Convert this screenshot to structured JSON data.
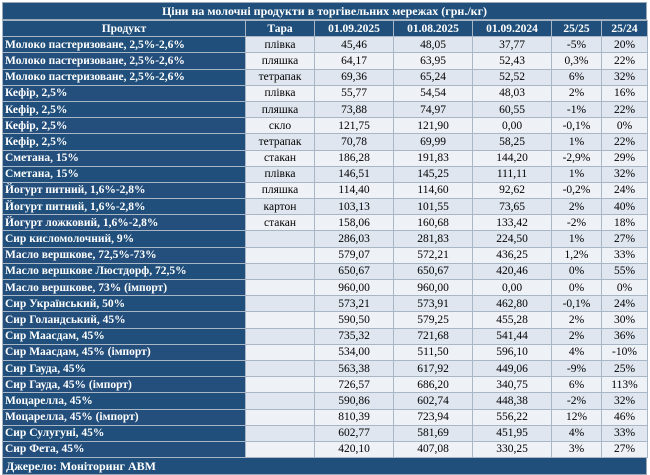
{
  "title": "Ціни на молочні продукти в торгівельних мережах (грн./кг)",
  "columns": [
    "Продукт",
    "Тара",
    "01.09.2025",
    "01.08.2025",
    "01.09.2024",
    "25/25",
    "25/24"
  ],
  "rows": [
    [
      "Молоко пастеризоване, 2,5%-2,6%",
      "плівка",
      "45,46",
      "48,05",
      "37,77",
      "-5%",
      "20%"
    ],
    [
      "Молоко пастеризоване, 2,5%-2,6%",
      "пляшка",
      "64,17",
      "63,95",
      "52,43",
      "0,3%",
      "22%"
    ],
    [
      "Молоко пастеризоване, 2,5%-2,6%",
      "тетрапак",
      "69,36",
      "65,24",
      "52,52",
      "6%",
      "32%"
    ],
    [
      "Кефір, 2,5%",
      "плівка",
      "55,77",
      "54,54",
      "48,03",
      "2%",
      "16%"
    ],
    [
      "Кефір, 2,5%",
      "пляшка",
      "73,88",
      "74,97",
      "60,55",
      "-1%",
      "22%"
    ],
    [
      "Кефір, 2,5%",
      "скло",
      "121,75",
      "121,90",
      "0,00",
      "-0,1%",
      "0%"
    ],
    [
      "Кефір, 2,5%",
      "тетрапак",
      "70,78",
      "69,99",
      "58,25",
      "1%",
      "22%"
    ],
    [
      "Сметана, 15%",
      "стакан",
      "186,28",
      "191,83",
      "144,20",
      "-2,9%",
      "29%"
    ],
    [
      "Сметана, 15%",
      "плівка",
      "146,51",
      "145,25",
      "111,11",
      "1%",
      "32%"
    ],
    [
      "Йогурт питний, 1,6%-2,8%",
      "пляшка",
      "114,40",
      "114,60",
      "92,62",
      "-0,2%",
      "24%"
    ],
    [
      "Йогурт питний, 1,6%-2,8%",
      "картон",
      "103,13",
      "101,55",
      "73,65",
      "2%",
      "40%"
    ],
    [
      "Йогурт ложковий, 1,6%-2,8%",
      "стакан",
      "158,06",
      "160,68",
      "133,42",
      "-2%",
      "18%"
    ],
    [
      "Сир кисломолочний, 9%",
      "",
      "286,03",
      "281,83",
      "224,50",
      "1%",
      "27%"
    ],
    [
      "Масло вершкове, 72,5%-73%",
      "",
      "579,07",
      "572,21",
      "436,25",
      "1,2%",
      "33%"
    ],
    [
      "Масло вершкове Люстдорф, 72,5%",
      "",
      "650,67",
      "650,67",
      "420,46",
      "0%",
      "55%"
    ],
    [
      "Масло вершкове, 73% (імпорт)",
      "",
      "960,00",
      "960,00",
      "0,00",
      "0%",
      "0%"
    ],
    [
      "Сир Український, 50%",
      "",
      "573,21",
      "573,91",
      "462,80",
      "-0,1%",
      "24%"
    ],
    [
      "Сир Голандський, 45%",
      "",
      "590,50",
      "579,25",
      "455,28",
      "2%",
      "30%"
    ],
    [
      "Сир Маасдам, 45%",
      "",
      "735,32",
      "721,68",
      "541,44",
      "2%",
      "36%"
    ],
    [
      "Сир Маасдам, 45% (імпорт)",
      "",
      "534,00",
      "511,50",
      "596,10",
      "4%",
      "-10%"
    ],
    [
      "Сир Гауда, 45%",
      "",
      "563,38",
      "617,92",
      "449,06",
      "-9%",
      "25%"
    ],
    [
      "Сир Гауда, 45% (імпорт)",
      "",
      "726,57",
      "686,20",
      "340,75",
      "6%",
      "113%"
    ],
    [
      "Моцарелла, 45%",
      "",
      "590,86",
      "602,74",
      "448,38",
      "-2%",
      "32%"
    ],
    [
      "Моцарелла, 45% (імпорт)",
      "",
      "810,39",
      "723,94",
      "556,22",
      "12%",
      "46%"
    ],
    [
      "Сир Сулугуні, 45%",
      "",
      "602,77",
      "581,69",
      "451,95",
      "4%",
      "33%"
    ],
    [
      "Сир Фета, 45%",
      "",
      "420,10",
      "407,08",
      "330,25",
      "3%",
      "27%"
    ]
  ],
  "source": "Джерело: Моніторинг АВМ"
}
